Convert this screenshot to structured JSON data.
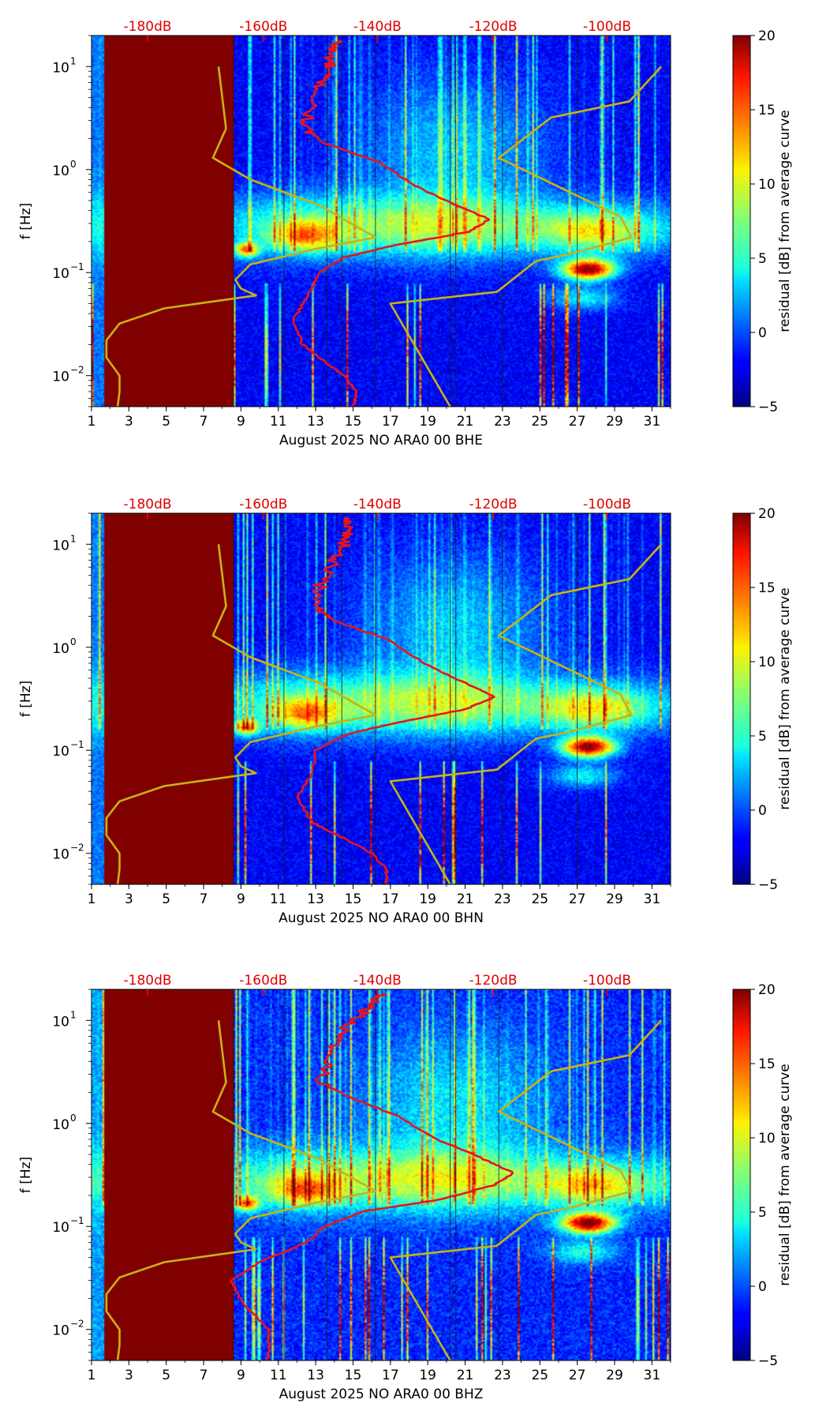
{
  "chart_data": [
    {
      "type": "heatmap",
      "title": "",
      "xlabel": "August 2025 NO ARA0 00 BHE",
      "ylabel": "f [Hz]",
      "x_ticks": [
        "1",
        "3",
        "5",
        "7",
        "9",
        "11",
        "13",
        "15",
        "17",
        "19",
        "21",
        "23",
        "25",
        "27",
        "29",
        "31"
      ],
      "xlim": [
        1,
        32
      ],
      "y_ticks": [
        {
          "base": "10",
          "exp": "1",
          "value": 10
        },
        {
          "base": "10",
          "exp": "0",
          "value": 1
        },
        {
          "base": "10",
          "exp": "−1",
          "value": 0.1
        },
        {
          "base": "10",
          "exp": "−2",
          "value": 0.01
        }
      ],
      "ylim": [
        0.005,
        20
      ],
      "yscale": "log",
      "top_axis_labels": [
        "-180dB",
        "-160dB",
        "-140dB",
        "-120dB",
        "-100dB"
      ],
      "top_axis_day_positions": [
        4,
        10.2,
        16.3,
        22.5,
        28.6
      ],
      "colorbar": {
        "label": "residual [dB] from average curve",
        "range": [
          -5,
          20
        ],
        "ticks": [
          "−5",
          "0",
          "5",
          "10",
          "15",
          "20"
        ],
        "colormap": "jet"
      },
      "masked_interval_days": [
        1.7,
        8.6
      ],
      "vertical_lines_days": [
        8.6,
        11.3,
        13.6,
        14.4,
        16.2,
        20.2,
        20.5,
        23.0,
        27.0
      ],
      "red_curve_power_profile": [
        {
          "f": 18,
          "day": 14.2
        },
        {
          "f": 14,
          "day": 13.8
        },
        {
          "f": 10,
          "day": 13.7
        },
        {
          "f": 7,
          "day": 13.3
        },
        {
          "f": 4,
          "day": 12.7
        },
        {
          "f": 2.5,
          "day": 12.4
        },
        {
          "f": 1.8,
          "day": 13.5
        },
        {
          "f": 1.2,
          "day": 16.3
        },
        {
          "f": 0.7,
          "day": 18.3
        },
        {
          "f": 0.45,
          "day": 20.5
        },
        {
          "f": 0.33,
          "day": 22.3
        },
        {
          "f": 0.25,
          "day": 21.2
        },
        {
          "f": 0.18,
          "day": 17.0
        },
        {
          "f": 0.14,
          "day": 14.5
        },
        {
          "f": 0.1,
          "day": 13.2
        },
        {
          "f": 0.06,
          "day": 12.6
        },
        {
          "f": 0.035,
          "day": 11.8
        },
        {
          "f": 0.02,
          "day": 12.3
        },
        {
          "f": 0.015,
          "day": 13.2
        },
        {
          "f": 0.01,
          "day": 14.5
        },
        {
          "f": 0.007,
          "day": 15.2
        },
        {
          "f": 0.005,
          "day": 15.0
        }
      ],
      "yellow_curve_low_model": [
        {
          "f": 10,
          "day": 7.8
        },
        {
          "f": 2.5,
          "day": 8.2
        },
        {
          "f": 1.3,
          "day": 7.5
        },
        {
          "f": 0.8,
          "day": 9.5
        },
        {
          "f": 0.45,
          "day": 13.2
        },
        {
          "f": 0.22,
          "day": 16.2
        },
        {
          "f": 0.17,
          "day": 13.0
        },
        {
          "f": 0.12,
          "day": 9.5
        },
        {
          "f": 0.085,
          "day": 8.7
        },
        {
          "f": 0.07,
          "day": 9.0
        },
        {
          "f": 0.06,
          "day": 9.8
        },
        {
          "f": 0.045,
          "day": 4.9
        },
        {
          "f": 0.032,
          "day": 2.5
        },
        {
          "f": 0.022,
          "day": 1.8
        },
        {
          "f": 0.015,
          "day": 1.8
        },
        {
          "f": 0.01,
          "day": 2.5
        },
        {
          "f": 0.007,
          "day": 2.5
        },
        {
          "f": 0.005,
          "day": 2.4
        }
      ],
      "yellow_curve_high_model": [
        {
          "f": 10,
          "day": 31.5
        },
        {
          "f": 4.6,
          "day": 29.8
        },
        {
          "f": 3.2,
          "day": 25.6
        },
        {
          "f": 1.3,
          "day": 22.8
        },
        {
          "f": 0.35,
          "day": 29.3
        },
        {
          "f": 0.22,
          "day": 29.9
        },
        {
          "f": 0.15,
          "day": 26.5
        },
        {
          "f": 0.13,
          "day": 24.8
        },
        {
          "f": 0.065,
          "day": 22.7
        },
        {
          "f": 0.05,
          "day": 17.0
        },
        {
          "f": 0.005,
          "day": 20.2
        }
      ]
    },
    {
      "type": "heatmap",
      "title": "",
      "xlabel": "August 2025 NO ARA0 00 BHN",
      "ylabel": "f [Hz]",
      "x_ticks": [
        "1",
        "3",
        "5",
        "7",
        "9",
        "11",
        "13",
        "15",
        "17",
        "19",
        "21",
        "23",
        "25",
        "27",
        "29",
        "31"
      ],
      "xlim": [
        1,
        32
      ],
      "y_ticks": [
        {
          "base": "10",
          "exp": "1",
          "value": 10
        },
        {
          "base": "10",
          "exp": "0",
          "value": 1
        },
        {
          "base": "10",
          "exp": "−1",
          "value": 0.1
        },
        {
          "base": "10",
          "exp": "−2",
          "value": 0.01
        }
      ],
      "ylim": [
        0.005,
        20
      ],
      "yscale": "log",
      "top_axis_labels": [
        "-180dB",
        "-160dB",
        "-140dB",
        "-120dB",
        "-100dB"
      ],
      "top_axis_day_positions": [
        4,
        10.2,
        16.3,
        22.5,
        28.6
      ],
      "colorbar": {
        "label": "residual [dB] from average curve",
        "range": [
          -5,
          20
        ],
        "ticks": [
          "−5",
          "0",
          "5",
          "10",
          "15",
          "20"
        ],
        "colormap": "jet"
      },
      "masked_interval_days": [
        1.7,
        8.6
      ],
      "vertical_lines_days": [
        8.6,
        11.3,
        13.6,
        14.4,
        16.2,
        20.2,
        20.5,
        23.0,
        27.0
      ],
      "red_curve_power_profile": [
        {
          "f": 18,
          "day": 14.5
        },
        {
          "f": 14,
          "day": 14.8
        },
        {
          "f": 10,
          "day": 14.5
        },
        {
          "f": 7,
          "day": 14.0
        },
        {
          "f": 4,
          "day": 13.2
        },
        {
          "f": 2.5,
          "day": 13.0
        },
        {
          "f": 1.8,
          "day": 14.0
        },
        {
          "f": 1.2,
          "day": 16.8
        },
        {
          "f": 0.7,
          "day": 18.8
        },
        {
          "f": 0.45,
          "day": 21.0
        },
        {
          "f": 0.33,
          "day": 22.6
        },
        {
          "f": 0.25,
          "day": 21.0
        },
        {
          "f": 0.18,
          "day": 17.0
        },
        {
          "f": 0.14,
          "day": 14.5
        },
        {
          "f": 0.1,
          "day": 13.0
        },
        {
          "f": 0.06,
          "day": 12.8
        },
        {
          "f": 0.035,
          "day": 12.0
        },
        {
          "f": 0.02,
          "day": 12.8
        },
        {
          "f": 0.015,
          "day": 14.2
        },
        {
          "f": 0.01,
          "day": 16.0
        },
        {
          "f": 0.007,
          "day": 16.8
        },
        {
          "f": 0.005,
          "day": 16.8
        }
      ],
      "yellow_curve_low_model": [
        {
          "f": 10,
          "day": 7.8
        },
        {
          "f": 2.5,
          "day": 8.2
        },
        {
          "f": 1.3,
          "day": 7.5
        },
        {
          "f": 0.8,
          "day": 9.5
        },
        {
          "f": 0.45,
          "day": 13.2
        },
        {
          "f": 0.22,
          "day": 16.2
        },
        {
          "f": 0.17,
          "day": 13.0
        },
        {
          "f": 0.12,
          "day": 9.5
        },
        {
          "f": 0.085,
          "day": 8.7
        },
        {
          "f": 0.07,
          "day": 9.0
        },
        {
          "f": 0.06,
          "day": 9.8
        },
        {
          "f": 0.045,
          "day": 4.9
        },
        {
          "f": 0.032,
          "day": 2.5
        },
        {
          "f": 0.022,
          "day": 1.8
        },
        {
          "f": 0.015,
          "day": 1.8
        },
        {
          "f": 0.01,
          "day": 2.5
        },
        {
          "f": 0.007,
          "day": 2.5
        },
        {
          "f": 0.005,
          "day": 2.4
        }
      ],
      "yellow_curve_high_model": [
        {
          "f": 10,
          "day": 31.5
        },
        {
          "f": 4.6,
          "day": 29.8
        },
        {
          "f": 3.2,
          "day": 25.6
        },
        {
          "f": 1.3,
          "day": 22.8
        },
        {
          "f": 0.35,
          "day": 29.3
        },
        {
          "f": 0.22,
          "day": 29.9
        },
        {
          "f": 0.15,
          "day": 26.5
        },
        {
          "f": 0.13,
          "day": 24.8
        },
        {
          "f": 0.065,
          "day": 22.7
        },
        {
          "f": 0.05,
          "day": 17.0
        },
        {
          "f": 0.005,
          "day": 20.2
        }
      ]
    },
    {
      "type": "heatmap",
      "title": "",
      "xlabel": "August 2025 NO ARA0 00 BHZ",
      "ylabel": "f [Hz]",
      "x_ticks": [
        "1",
        "3",
        "5",
        "7",
        "9",
        "11",
        "13",
        "15",
        "17",
        "19",
        "21",
        "23",
        "25",
        "27",
        "29",
        "31"
      ],
      "xlim": [
        1,
        32
      ],
      "y_ticks": [
        {
          "base": "10",
          "exp": "1",
          "value": 10
        },
        {
          "base": "10",
          "exp": "0",
          "value": 1
        },
        {
          "base": "10",
          "exp": "−1",
          "value": 0.1
        },
        {
          "base": "10",
          "exp": "−2",
          "value": 0.01
        }
      ],
      "ylim": [
        0.005,
        20
      ],
      "yscale": "log",
      "top_axis_labels": [
        "-180dB",
        "-160dB",
        "-140dB",
        "-120dB",
        "-100dB"
      ],
      "top_axis_day_positions": [
        4,
        10.2,
        16.3,
        22.5,
        28.6
      ],
      "colorbar": {
        "label": "residual [dB] from average curve",
        "range": [
          -5,
          20
        ],
        "ticks": [
          "−5",
          "0",
          "5",
          "10",
          "15",
          "20"
        ],
        "colormap": "jet"
      },
      "masked_interval_days": [
        1.7,
        8.6
      ],
      "vertical_lines_days": [
        8.6,
        11.3,
        13.6,
        16.2,
        20.2,
        20.5,
        22.8
      ],
      "red_curve_power_profile": [
        {
          "f": 18,
          "day": 16.5
        },
        {
          "f": 14,
          "day": 16.0
        },
        {
          "f": 10,
          "day": 15.0
        },
        {
          "f": 7,
          "day": 14.2
        },
        {
          "f": 4,
          "day": 13.6
        },
        {
          "f": 2.5,
          "day": 13.3
        },
        {
          "f": 1.8,
          "day": 14.8
        },
        {
          "f": 1.2,
          "day": 17.3
        },
        {
          "f": 0.7,
          "day": 19.5
        },
        {
          "f": 0.45,
          "day": 22.0
        },
        {
          "f": 0.33,
          "day": 23.6
        },
        {
          "f": 0.25,
          "day": 22.5
        },
        {
          "f": 0.18,
          "day": 19.5
        },
        {
          "f": 0.14,
          "day": 15.5
        },
        {
          "f": 0.1,
          "day": 13.5
        },
        {
          "f": 0.07,
          "day": 12.5
        },
        {
          "f": 0.045,
          "day": 10.0
        },
        {
          "f": 0.03,
          "day": 8.5
        },
        {
          "f": 0.022,
          "day": 8.8
        },
        {
          "f": 0.015,
          "day": 9.5
        },
        {
          "f": 0.01,
          "day": 10.5
        },
        {
          "f": 0.007,
          "day": 10.5
        },
        {
          "f": 0.005,
          "day": 10.4
        }
      ],
      "yellow_curve_low_model": [
        {
          "f": 10,
          "day": 7.8
        },
        {
          "f": 2.5,
          "day": 8.2
        },
        {
          "f": 1.3,
          "day": 7.5
        },
        {
          "f": 0.8,
          "day": 9.5
        },
        {
          "f": 0.45,
          "day": 13.2
        },
        {
          "f": 0.22,
          "day": 16.2
        },
        {
          "f": 0.17,
          "day": 13.0
        },
        {
          "f": 0.12,
          "day": 9.5
        },
        {
          "f": 0.085,
          "day": 8.7
        },
        {
          "f": 0.07,
          "day": 9.0
        },
        {
          "f": 0.06,
          "day": 9.8
        },
        {
          "f": 0.045,
          "day": 4.9
        },
        {
          "f": 0.032,
          "day": 2.5
        },
        {
          "f": 0.022,
          "day": 1.8
        },
        {
          "f": 0.015,
          "day": 1.8
        },
        {
          "f": 0.01,
          "day": 2.5
        },
        {
          "f": 0.007,
          "day": 2.5
        },
        {
          "f": 0.005,
          "day": 2.4
        }
      ],
      "yellow_curve_high_model": [
        {
          "f": 10,
          "day": 31.5
        },
        {
          "f": 4.6,
          "day": 29.8
        },
        {
          "f": 3.2,
          "day": 25.6
        },
        {
          "f": 1.3,
          "day": 22.8
        },
        {
          "f": 0.35,
          "day": 29.3
        },
        {
          "f": 0.22,
          "day": 29.9
        },
        {
          "f": 0.15,
          "day": 26.5
        },
        {
          "f": 0.13,
          "day": 24.8
        },
        {
          "f": 0.065,
          "day": 22.7
        },
        {
          "f": 0.05,
          "day": 17.0
        },
        {
          "f": 0.005,
          "day": 20.2
        }
      ]
    }
  ],
  "colors": {
    "masked": "#800000",
    "red_curve": "#e8141c",
    "yellow_curve": "#c9b212",
    "top_label": "#e00000",
    "vertical_line": "#1a1a1a"
  }
}
